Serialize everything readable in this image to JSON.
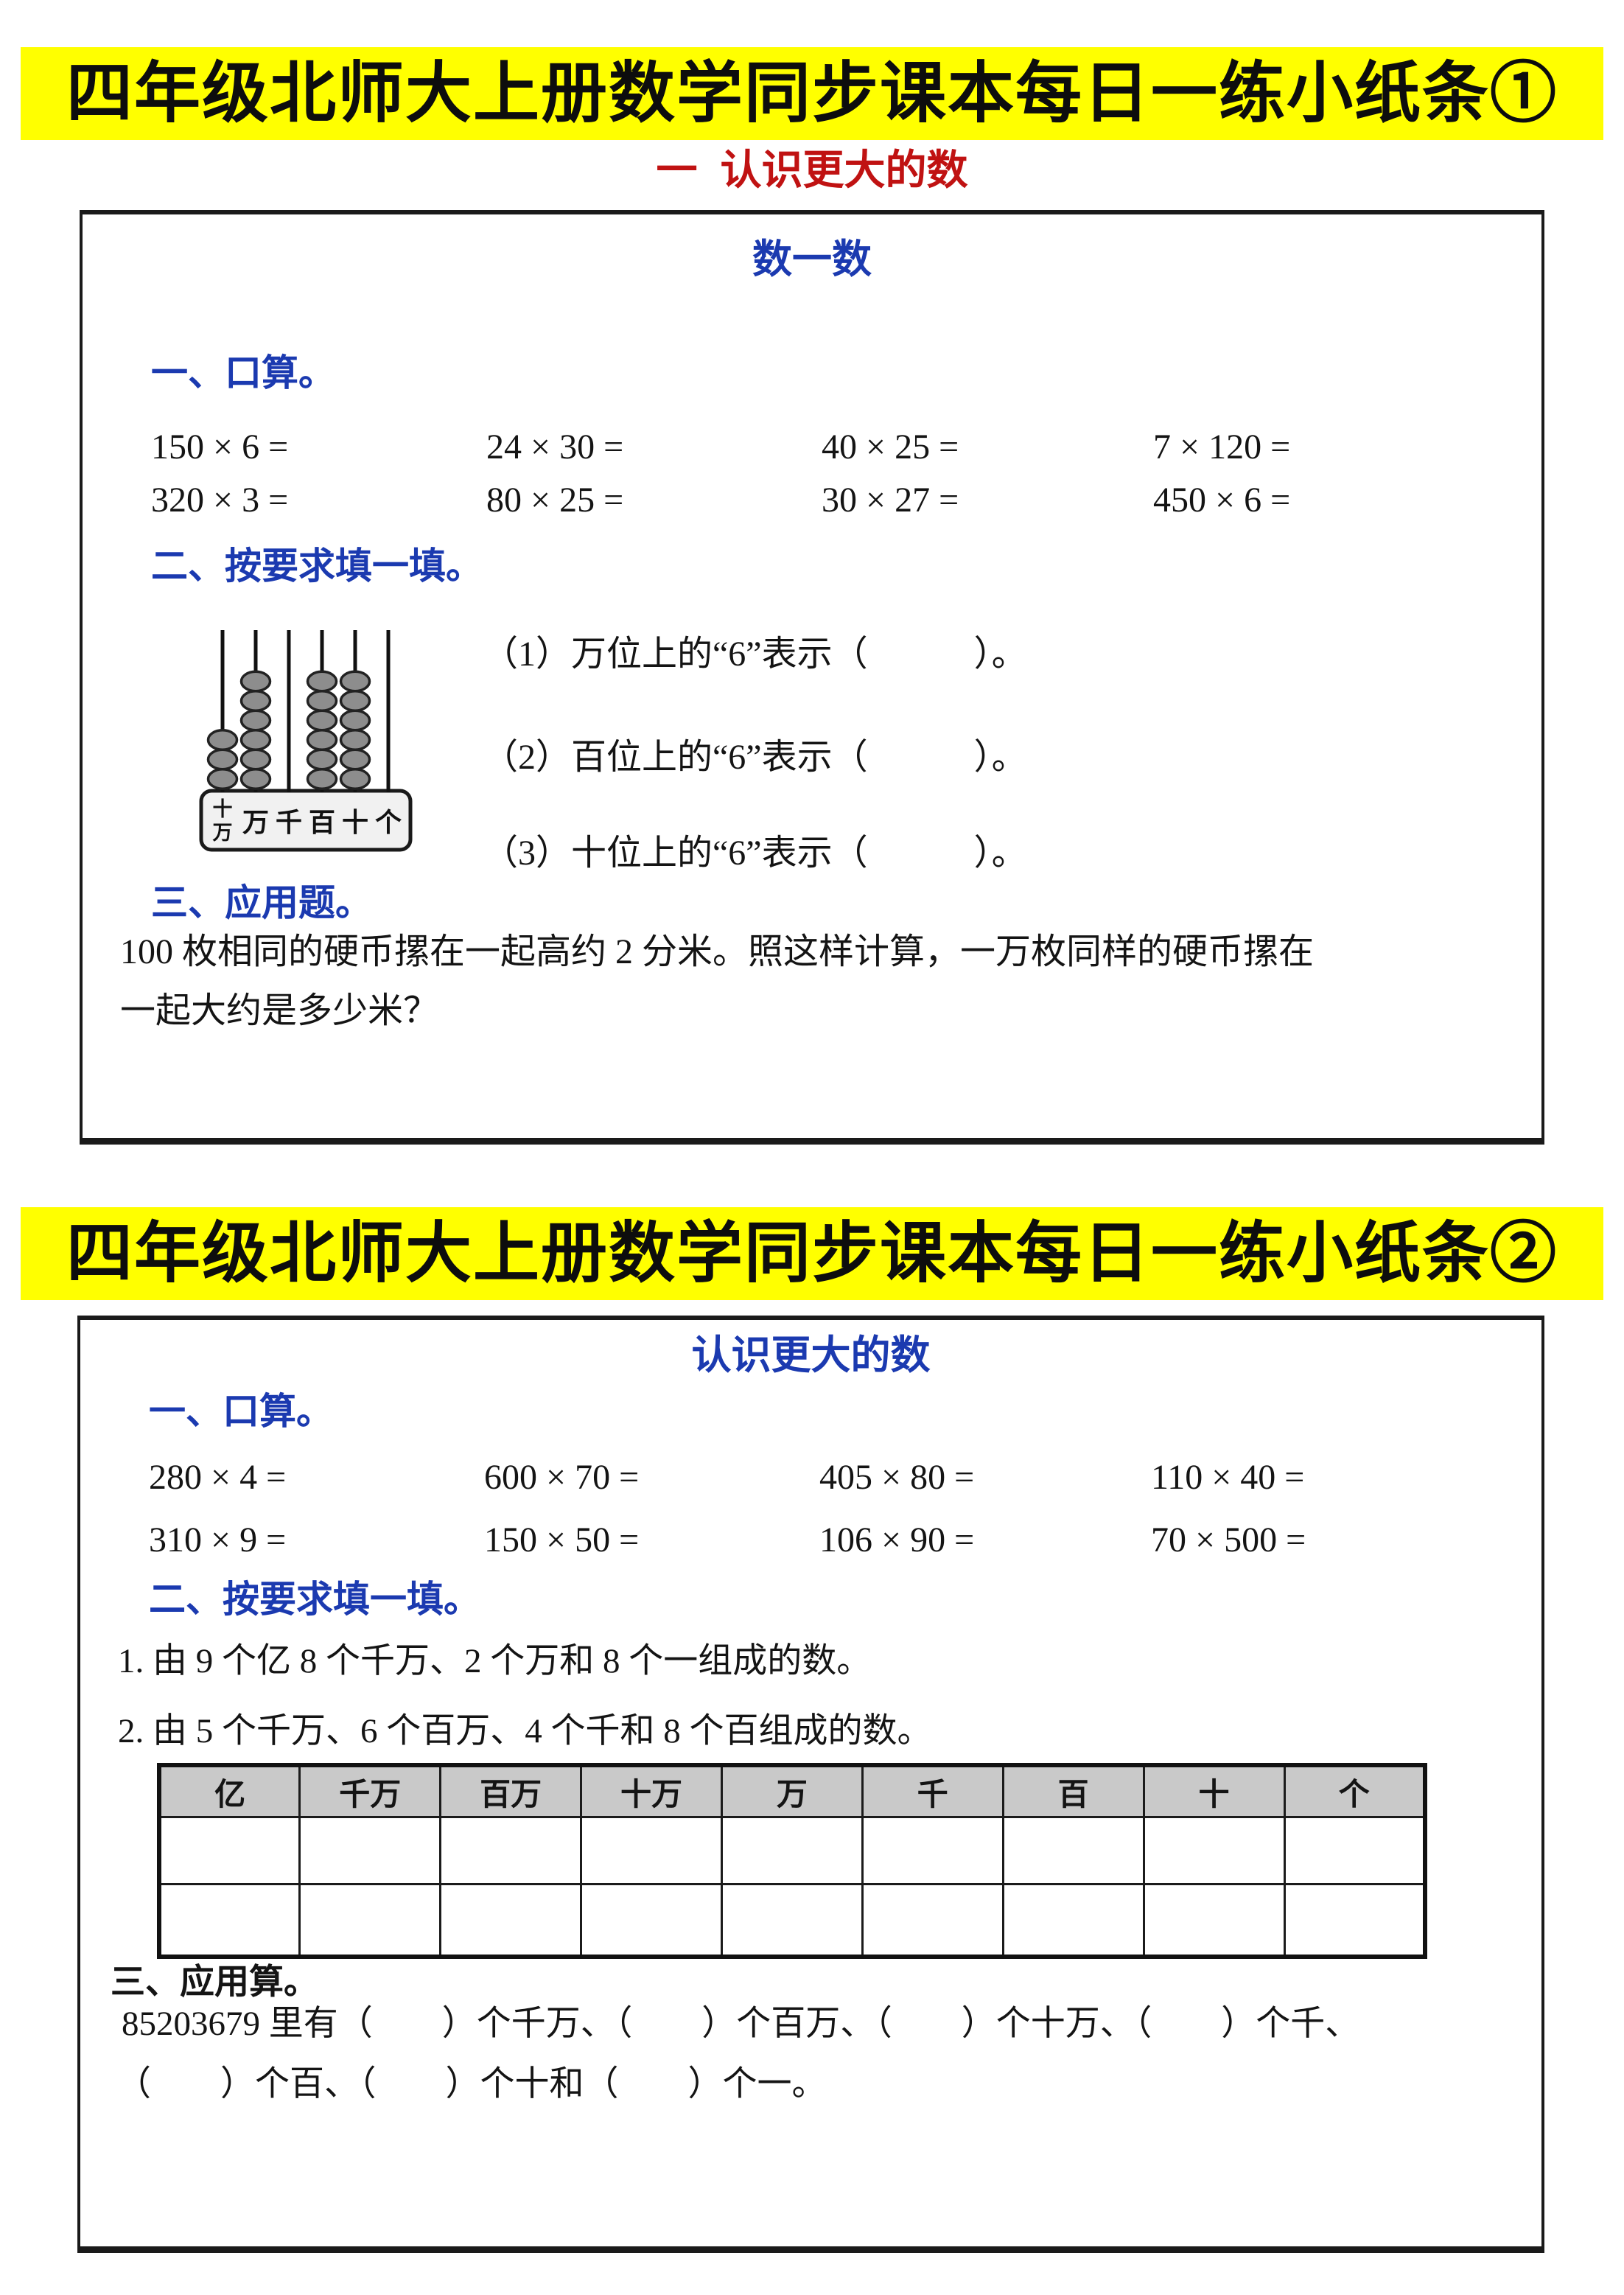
{
  "colors": {
    "banner_bg": "#ffff00",
    "banner_text": "#0d0d0d",
    "heading_blue": "#1b3ab0",
    "subtitle_red": "#c01212",
    "table_header_bg": "#c9c9c9",
    "abacus_bead_gray": "#8d8d8d"
  },
  "sheet1": {
    "banner": "四年级北师大上册数学同步课本每日一练小纸条①",
    "subtitle": "一  认识更大的数",
    "title": "数一数",
    "section1": {
      "heading": "一、口算。",
      "rows": [
        [
          "150 × 6 =",
          "24 × 30 =",
          "40 × 25 =",
          "7 × 120 ="
        ],
        [
          "320 × 3 =",
          "80 × 25 =",
          "30 × 27 =",
          "450 × 6 ="
        ]
      ]
    },
    "section2": {
      "heading": "二、按要求填一填。",
      "abacus": {
        "bead_counts": [
          3,
          6,
          0,
          6,
          6,
          0
        ],
        "labels": [
          "十万",
          "万",
          "千",
          "百",
          "十",
          "个"
        ]
      },
      "questions": [
        "（1）万位上的“6”表示（　　　）。",
        "（2）百位上的“6”表示（　　　）。",
        "（3）十位上的“6”表示（　　　）。"
      ]
    },
    "section3": {
      "heading": "三、应用题。",
      "lines": [
        "100 枚相同的硬币摞在一起高约 2 分米。照这样计算，一万枚同样的硬币摞在",
        "一起大约是多少米？"
      ]
    }
  },
  "sheet2": {
    "banner": "四年级北师大上册数学同步课本每日一练小纸条②",
    "title": "认识更大的数",
    "section1": {
      "heading": "一、口算。",
      "rows": [
        [
          "280 × 4 =",
          "600 × 70 =",
          "405 × 80 =",
          "110 × 40 ="
        ],
        [
          "310 × 9 =",
          "150 × 50 =",
          "106 × 90 =",
          "70 × 500 ="
        ]
      ]
    },
    "section2": {
      "heading": "二、按要求填一填。",
      "items": [
        "1. 由 9 个亿 8 个千万、2 个万和 8 个一组成的数。",
        "2. 由 5 个千万、6 个百万、4 个千和 8 个百组成的数。"
      ],
      "table": {
        "headers": [
          "亿",
          "千万",
          "百万",
          "十万",
          "万",
          "千",
          "百",
          "十",
          "个"
        ],
        "empty_rows": 2
      }
    },
    "section3": {
      "heading": "三、应用算。",
      "lines": [
        "85203679 里有（　　）个千万、（　　）个百万、（　　）个十万、（　　）个千、",
        "（　　）个百、（　　）个十和（　　）个一。"
      ]
    }
  }
}
